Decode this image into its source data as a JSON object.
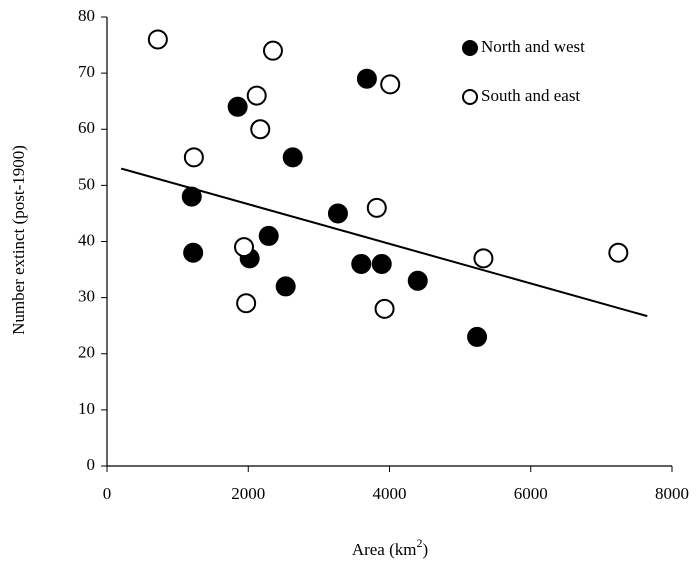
{
  "chart_data": {
    "type": "scatter",
    "x_label": "Area (km",
    "x_label_sup": "2",
    "x_label_end": ")",
    "y_label": "Number extinct (post-1900)",
    "xlim": [
      0,
      8000
    ],
    "xticks": [
      0,
      2000,
      4000,
      6000,
      8000
    ],
    "ylim": [
      0,
      80
    ],
    "yticks": [
      0,
      10,
      20,
      30,
      40,
      50,
      60,
      70,
      80
    ],
    "legend_position": "upper right",
    "series": [
      {
        "name": "North and west",
        "color": "#000000",
        "filled": true,
        "x": [
          1850,
          3680,
          1200,
          1220,
          2630,
          2290,
          2020,
          2530,
          3270,
          3600,
          3890,
          4400,
          5240
        ],
        "values": [
          64,
          69,
          48,
          38,
          55,
          41,
          37,
          32,
          45,
          36,
          36,
          33,
          23
        ]
      },
      {
        "name": "South and east",
        "color": "#000000",
        "filled": false,
        "x": [
          720,
          2350,
          4010,
          2120,
          2170,
          1230,
          3820,
          1940,
          1970,
          3930,
          5330,
          7240
        ],
        "values": [
          76,
          74,
          68,
          66,
          60,
          55,
          46,
          39,
          29,
          28,
          37,
          38
        ]
      }
    ],
    "trendline": {
      "color": "#000000",
      "x": [
        200,
        7650
      ],
      "values": [
        53,
        26.7
      ]
    }
  }
}
